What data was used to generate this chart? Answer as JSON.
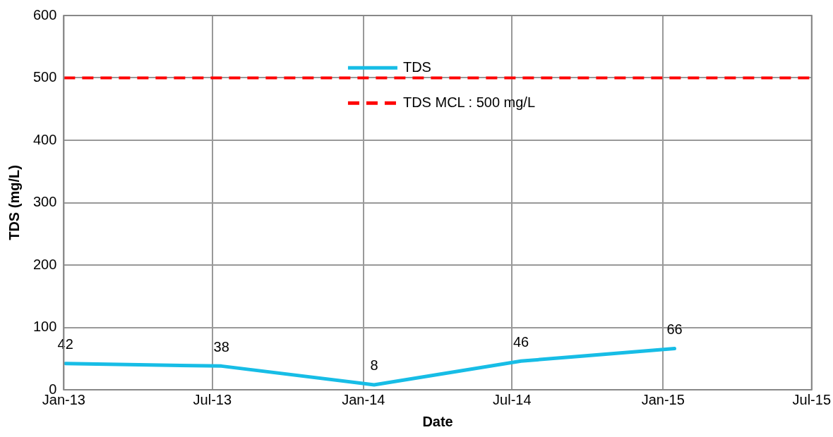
{
  "chart_data": {
    "type": "line",
    "xlabel": "Date",
    "ylabel": "TDS (mg/L)",
    "x": [
      "2013-01-03",
      "2013-07-12",
      "2014-01-14",
      "2014-07-12",
      "2015-01-15"
    ],
    "series": [
      {
        "name": "TDS",
        "color": "#17bde6",
        "values": [
          42,
          38,
          8,
          46,
          66
        ]
      }
    ],
    "ref_lines": [
      {
        "axis": "y",
        "value": 500,
        "label": "TDS MCL : 500 mg/L",
        "color": "#ff0000",
        "line_style": "dashed"
      }
    ],
    "xlim": [
      "2013-01",
      "2015-07"
    ],
    "xticks": [
      {
        "value": "2013-01",
        "label": "Jan-13"
      },
      {
        "value": "2013-07",
        "label": "Jul-13"
      },
      {
        "value": "2014-01",
        "label": "Jan-14"
      },
      {
        "value": "2014-07",
        "label": "Jul-14"
      },
      {
        "value": "2015-01",
        "label": "Jan-15"
      },
      {
        "value": "2015-07",
        "label": "Jul-15"
      }
    ],
    "ylim": [
      0,
      600
    ],
    "yticks": [
      0,
      100,
      200,
      300,
      400,
      500,
      600
    ],
    "grid": true,
    "legend": "top",
    "data_labels": true,
    "marker": "none",
    "line_style": "solid"
  }
}
